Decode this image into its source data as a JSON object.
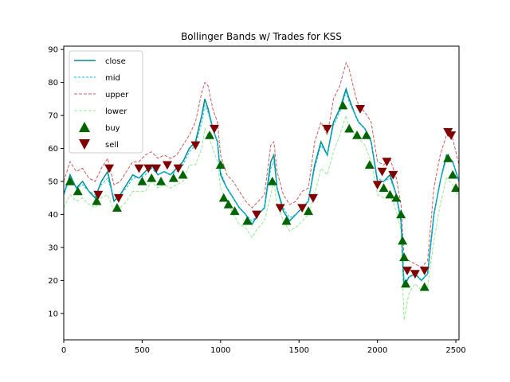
{
  "chart_data": {
    "type": "line",
    "title": "Bollinger Bands w/ Trades for KSS",
    "xlabel": "",
    "ylabel": "",
    "xlim": [
      0,
      2520
    ],
    "ylim": [
      2,
      91
    ],
    "xticks": [
      0,
      500,
      1000,
      1500,
      2000,
      2500
    ],
    "yticks": [
      10,
      20,
      30,
      40,
      50,
      60,
      70,
      80,
      90
    ],
    "grid": false,
    "legend_position": "upper-left",
    "legend": [
      "close",
      "mid",
      "upper",
      "lower",
      "buy",
      "sell"
    ],
    "x": [
      0,
      40,
      80,
      120,
      160,
      200,
      240,
      280,
      320,
      360,
      400,
      440,
      480,
      520,
      560,
      600,
      640,
      680,
      720,
      760,
      800,
      840,
      880,
      900,
      920,
      950,
      980,
      1000,
      1040,
      1080,
      1120,
      1160,
      1200,
      1240,
      1280,
      1320,
      1340,
      1360,
      1400,
      1440,
      1480,
      1520,
      1560,
      1600,
      1640,
      1680,
      1720,
      1760,
      1800,
      1820,
      1860,
      1880,
      1920,
      1960,
      2000,
      2040,
      2080,
      2120,
      2150,
      2170,
      2200,
      2240,
      2280,
      2320,
      2360,
      2400,
      2440,
      2480,
      2520
    ],
    "series": [
      {
        "name": "close",
        "color": "#008b8b",
        "values": [
          46,
          52,
          48,
          50,
          47,
          45,
          50,
          53,
          44,
          46,
          49,
          52,
          51,
          53,
          55,
          52,
          53,
          52,
          54,
          56,
          60,
          62,
          70,
          75,
          72,
          66,
          62,
          52,
          48,
          45,
          42,
          40,
          37,
          40,
          42,
          56,
          58,
          48,
          41,
          38,
          40,
          42,
          44,
          55,
          62,
          58,
          68,
          72,
          78,
          75,
          70,
          68,
          66,
          62,
          50,
          50,
          52,
          46,
          38,
          18,
          21,
          22,
          20,
          22,
          40,
          50,
          58,
          56,
          50
        ]
      },
      {
        "name": "mid",
        "color": "#00bfff",
        "values": [
          46,
          51,
          48,
          49,
          47,
          46,
          49,
          51,
          45,
          46,
          48,
          51,
          51,
          52,
          54,
          52,
          53,
          52,
          53,
          55,
          59,
          61,
          68,
          73,
          71,
          66,
          62,
          53,
          48,
          45,
          42,
          40,
          38,
          40,
          42,
          54,
          56,
          48,
          42,
          39,
          40,
          42,
          44,
          54,
          61,
          58,
          67,
          71,
          77,
          74,
          70,
          68,
          66,
          62,
          51,
          50,
          51,
          46,
          39,
          19,
          21,
          22,
          20,
          22,
          40,
          50,
          57,
          56,
          50
        ]
      },
      {
        "name": "upper",
        "color": "#cd5c5c",
        "values": [
          50,
          56,
          53,
          54,
          51,
          50,
          54,
          57,
          49,
          50,
          53,
          56,
          56,
          58,
          59,
          57,
          58,
          57,
          58,
          61,
          64,
          68,
          77,
          80,
          79,
          72,
          68,
          58,
          52,
          50,
          47,
          44,
          42,
          44,
          46,
          61,
          62,
          53,
          46,
          43,
          44,
          47,
          48,
          62,
          68,
          64,
          75,
          79,
          86,
          84,
          76,
          73,
          71,
          68,
          56,
          55,
          57,
          51,
          43,
          27,
          26,
          25,
          24,
          26,
          48,
          58,
          64,
          63,
          55
        ]
      },
      {
        "name": "lower",
        "color": "#90ee90",
        "values": [
          42,
          46,
          44,
          45,
          43,
          42,
          45,
          46,
          41,
          42,
          44,
          47,
          47,
          47,
          50,
          48,
          49,
          48,
          49,
          50,
          55,
          55,
          60,
          66,
          64,
          60,
          56,
          48,
          44,
          40,
          37,
          36,
          33,
          36,
          38,
          46,
          50,
          43,
          38,
          35,
          36,
          38,
          40,
          46,
          54,
          52,
          59,
          64,
          70,
          66,
          64,
          63,
          61,
          56,
          46,
          45,
          46,
          41,
          35,
          8,
          16,
          19,
          17,
          18,
          32,
          43,
          51,
          49,
          45
        ]
      }
    ],
    "markers": {
      "buy": {
        "color": "#006400",
        "points": [
          [
            40,
            50
          ],
          [
            90,
            47
          ],
          [
            210,
            44
          ],
          [
            340,
            42
          ],
          [
            500,
            50
          ],
          [
            560,
            51
          ],
          [
            620,
            50
          ],
          [
            700,
            51
          ],
          [
            760,
            52
          ],
          [
            930,
            64
          ],
          [
            1000,
            55
          ],
          [
            1020,
            45
          ],
          [
            1050,
            43
          ],
          [
            1090,
            41
          ],
          [
            1170,
            38
          ],
          [
            1330,
            50
          ],
          [
            1420,
            38
          ],
          [
            1560,
            41
          ],
          [
            1780,
            73
          ],
          [
            1820,
            66
          ],
          [
            1870,
            64
          ],
          [
            1930,
            64
          ],
          [
            1950,
            55
          ],
          [
            2040,
            48
          ],
          [
            2080,
            46
          ],
          [
            2120,
            45
          ],
          [
            2150,
            40
          ],
          [
            2160,
            32
          ],
          [
            2170,
            27
          ],
          [
            2180,
            19
          ],
          [
            2300,
            18
          ],
          [
            2450,
            57
          ],
          [
            2480,
            52
          ],
          [
            2500,
            48
          ]
        ]
      },
      "sell": {
        "color": "#800000",
        "points": [
          [
            220,
            46
          ],
          [
            290,
            54
          ],
          [
            350,
            45
          ],
          [
            480,
            54
          ],
          [
            540,
            54
          ],
          [
            590,
            54
          ],
          [
            660,
            55
          ],
          [
            730,
            54
          ],
          [
            840,
            61
          ],
          [
            960,
            66
          ],
          [
            1230,
            40
          ],
          [
            1380,
            42
          ],
          [
            1520,
            42
          ],
          [
            1590,
            45
          ],
          [
            1680,
            66
          ],
          [
            1890,
            72
          ],
          [
            2000,
            49
          ],
          [
            2030,
            53
          ],
          [
            2060,
            56
          ],
          [
            2100,
            52
          ],
          [
            2190,
            23
          ],
          [
            2240,
            22
          ],
          [
            2300,
            23
          ],
          [
            2450,
            65
          ],
          [
            2470,
            64
          ]
        ]
      }
    }
  }
}
